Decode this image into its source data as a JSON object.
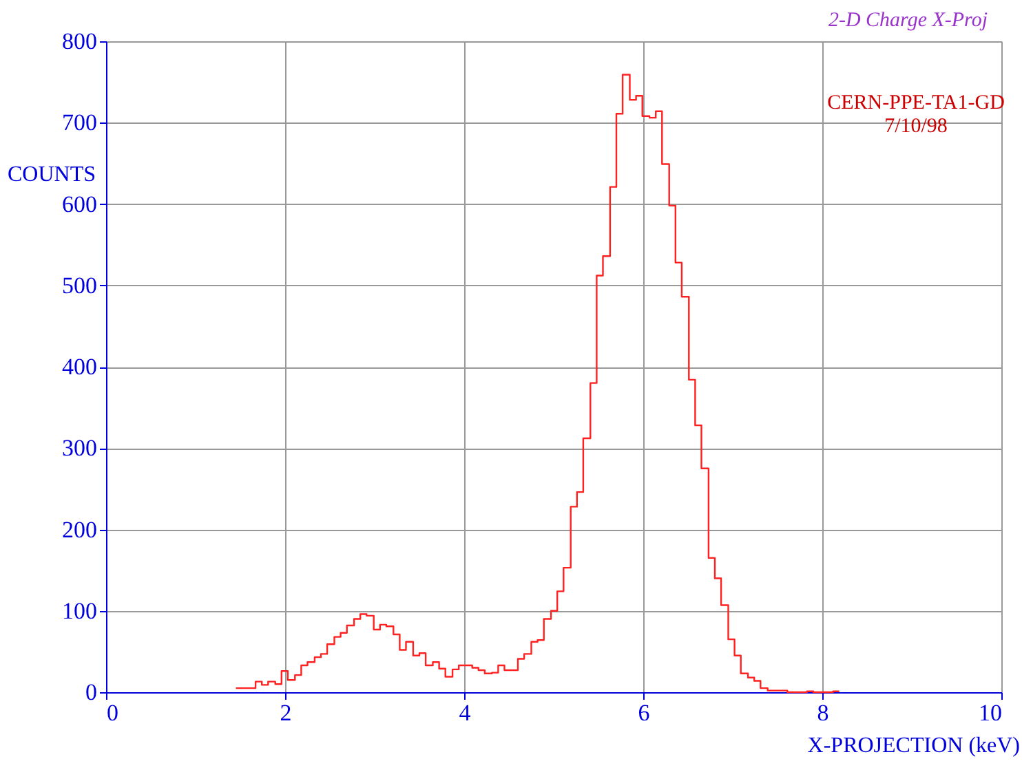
{
  "chart_data": {
    "type": "histogram",
    "title": "2-D Charge X-Proj",
    "xlabel": "X-PROJECTION (keV)",
    "ylabel": "COUNTS",
    "bins": [
      1.45,
      1.52,
      1.59,
      1.67,
      1.74,
      1.81,
      1.89,
      1.96,
      2.03,
      2.11,
      2.18,
      2.25,
      2.33,
      2.4,
      2.47,
      2.55,
      2.62,
      2.69,
      2.77,
      2.84,
      2.91,
      2.99,
      3.06,
      3.13,
      3.21,
      3.28,
      3.35,
      3.43,
      3.5,
      3.57,
      3.65,
      3.72,
      3.79,
      3.87,
      3.94,
      4.01,
      4.09,
      4.16,
      4.23,
      4.31,
      4.38,
      4.45,
      4.53,
      4.6,
      4.67,
      4.75,
      4.82,
      4.89,
      4.97,
      5.04,
      5.11,
      5.19,
      5.26,
      5.33,
      5.41,
      5.48,
      5.55,
      5.63,
      5.7,
      5.77,
      5.85,
      5.92,
      5.99,
      6.07,
      6.14,
      6.21,
      6.29,
      6.36,
      6.43,
      6.51,
      6.58,
      6.65,
      6.73,
      6.8,
      6.87,
      6.95,
      7.02,
      7.09,
      7.17,
      7.24,
      7.31,
      7.39,
      7.46,
      7.53,
      7.61,
      7.68,
      7.75,
      7.83,
      7.9,
      7.97,
      8.05,
      8.12,
      8.19
    ],
    "values": [
      5,
      5,
      5,
      13,
      9,
      13,
      10,
      26,
      15,
      21,
      33,
      37,
      43,
      47,
      59,
      68,
      73,
      82,
      90,
      96,
      94,
      77,
      83,
      81,
      71,
      52,
      62,
      45,
      48,
      33,
      37,
      29,
      19,
      28,
      33,
      33,
      30,
      27,
      23,
      24,
      33,
      27,
      27,
      41,
      47,
      62,
      64,
      90,
      100,
      124,
      153,
      228,
      246,
      312,
      380,
      512,
      536,
      621,
      711,
      759,
      728,
      733,
      708,
      706,
      714,
      649,
      598,
      528,
      486,
      384,
      328,
      275,
      165,
      140,
      107,
      65,
      45,
      23,
      18,
      14,
      5,
      2,
      2,
      2,
      0,
      0,
      0,
      1,
      0,
      0,
      0,
      1
    ],
    "color": "#ff2020",
    "xlim": [
      0,
      10
    ],
    "xticks": [
      0,
      2,
      4,
      6,
      8,
      10
    ],
    "ylim": [
      0,
      800
    ],
    "yticks": [
      0,
      100,
      200,
      300,
      400,
      500,
      600,
      700,
      800
    ],
    "grid": true,
    "annotations": [
      "CERN-PPE-TA1-GD",
      "7/10/98"
    ]
  }
}
